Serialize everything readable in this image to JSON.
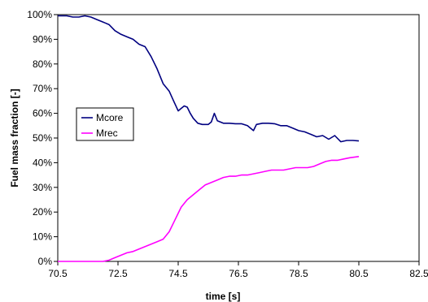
{
  "chart_data": {
    "type": "line",
    "title": "",
    "xlabel": "time [s]",
    "ylabel": "Fuel mass fraction [-]",
    "xlim": [
      70.5,
      82.5
    ],
    "ylim": [
      0,
      100
    ],
    "x_ticks": [
      70.5,
      72.5,
      74.5,
      76.5,
      78.5,
      80.5,
      82.5
    ],
    "x_tick_labels": [
      "70.5",
      "72.5",
      "74.5",
      "76.5",
      "78.5",
      "80.5",
      "82.5"
    ],
    "y_ticks": [
      0,
      10,
      20,
      30,
      40,
      50,
      60,
      70,
      80,
      90,
      100
    ],
    "y_tick_labels": [
      "0%",
      "10%",
      "20%",
      "30%",
      "40%",
      "50%",
      "60%",
      "70%",
      "80%",
      "90%",
      "100%"
    ],
    "grid": false,
    "legend": {
      "placement": "center-left",
      "entries": [
        "Mcore",
        "Mrec"
      ]
    },
    "series": [
      {
        "name": "Mcore",
        "color": "#000080",
        "x": [
          70.5,
          70.8,
          71.0,
          71.2,
          71.4,
          71.6,
          71.8,
          72.0,
          72.2,
          72.4,
          72.6,
          72.8,
          73.0,
          73.2,
          73.4,
          73.6,
          73.8,
          74.0,
          74.2,
          74.35,
          74.5,
          74.6,
          74.7,
          74.8,
          74.9,
          75.0,
          75.15,
          75.3,
          75.5,
          75.6,
          75.7,
          75.8,
          76.0,
          76.2,
          76.4,
          76.6,
          76.8,
          77.0,
          77.1,
          77.3,
          77.5,
          77.7,
          77.9,
          78.1,
          78.3,
          78.5,
          78.7,
          78.9,
          79.1,
          79.3,
          79.5,
          79.7,
          79.9,
          80.1,
          80.3,
          80.5
        ],
        "y": [
          99.5,
          99.5,
          99.0,
          99.0,
          99.5,
          99.0,
          98.0,
          97.0,
          96.0,
          93.5,
          92.0,
          91.0,
          90.0,
          88.0,
          87.0,
          83.0,
          78.0,
          72.0,
          69.0,
          65.0,
          61.0,
          62.0,
          63.0,
          62.5,
          60.0,
          58.0,
          56.0,
          55.5,
          55.5,
          56.5,
          60.0,
          57.0,
          56.0,
          56.0,
          55.8,
          55.8,
          55.0,
          53.0,
          55.5,
          56.0,
          56.0,
          55.8,
          55.0,
          55.0,
          54.0,
          53.0,
          52.5,
          51.5,
          50.5,
          51.0,
          49.5,
          51.0,
          48.5,
          49.0,
          49.0,
          48.8
        ]
      },
      {
        "name": "Mrec",
        "color": "#ff00ff",
        "x": [
          70.5,
          71.0,
          71.5,
          72.0,
          72.2,
          72.4,
          72.6,
          72.8,
          73.0,
          73.2,
          73.4,
          73.6,
          73.8,
          74.0,
          74.2,
          74.4,
          74.6,
          74.8,
          75.0,
          75.2,
          75.4,
          75.6,
          75.8,
          76.0,
          76.2,
          76.4,
          76.6,
          76.8,
          77.0,
          77.2,
          77.4,
          77.6,
          77.8,
          78.0,
          78.2,
          78.4,
          78.6,
          78.8,
          79.0,
          79.2,
          79.4,
          79.6,
          79.8,
          80.0,
          80.2,
          80.5
        ],
        "y": [
          0,
          0,
          0,
          0,
          0.5,
          1.5,
          2.5,
          3.5,
          4.0,
          5.0,
          6.0,
          7.0,
          8.0,
          9.0,
          12.0,
          17.0,
          22.0,
          25.0,
          27.0,
          29.0,
          31.0,
          32.0,
          33.0,
          34.0,
          34.5,
          34.5,
          35.0,
          35.0,
          35.5,
          36.0,
          36.5,
          37.0,
          37.0,
          37.0,
          37.5,
          38.0,
          38.0,
          38.0,
          38.5,
          39.5,
          40.5,
          41.0,
          41.0,
          41.5,
          42.0,
          42.5
        ]
      }
    ]
  }
}
